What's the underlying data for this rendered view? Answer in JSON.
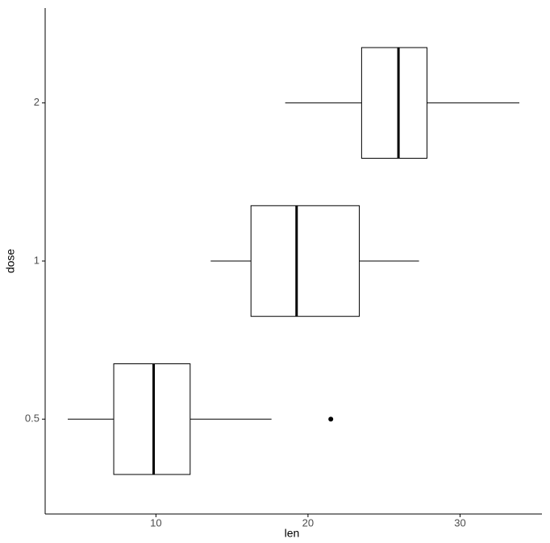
{
  "chart_data": {
    "type": "boxplot",
    "x_label": "len",
    "y_label": "dose",
    "categories": [
      "0.5",
      "1",
      "2"
    ],
    "boxes": [
      {
        "min": 4.2,
        "q1": 7.225,
        "median": 9.85,
        "q3": 12.25,
        "max": 17.6,
        "outliers": [
          21.5
        ]
      },
      {
        "min": 13.6,
        "q1": 16.25,
        "median": 19.25,
        "q3": 23.375,
        "max": 27.3
      },
      {
        "min": 18.5,
        "q1": 23.525,
        "median": 25.95,
        "q3": 27.825,
        "max": 33.9
      }
    ],
    "color": "#000000",
    "fill": "#ffffff",
    "xlim": [
      2.715,
      35.385
    ],
    "xticks": [
      10,
      20,
      30
    ]
  }
}
